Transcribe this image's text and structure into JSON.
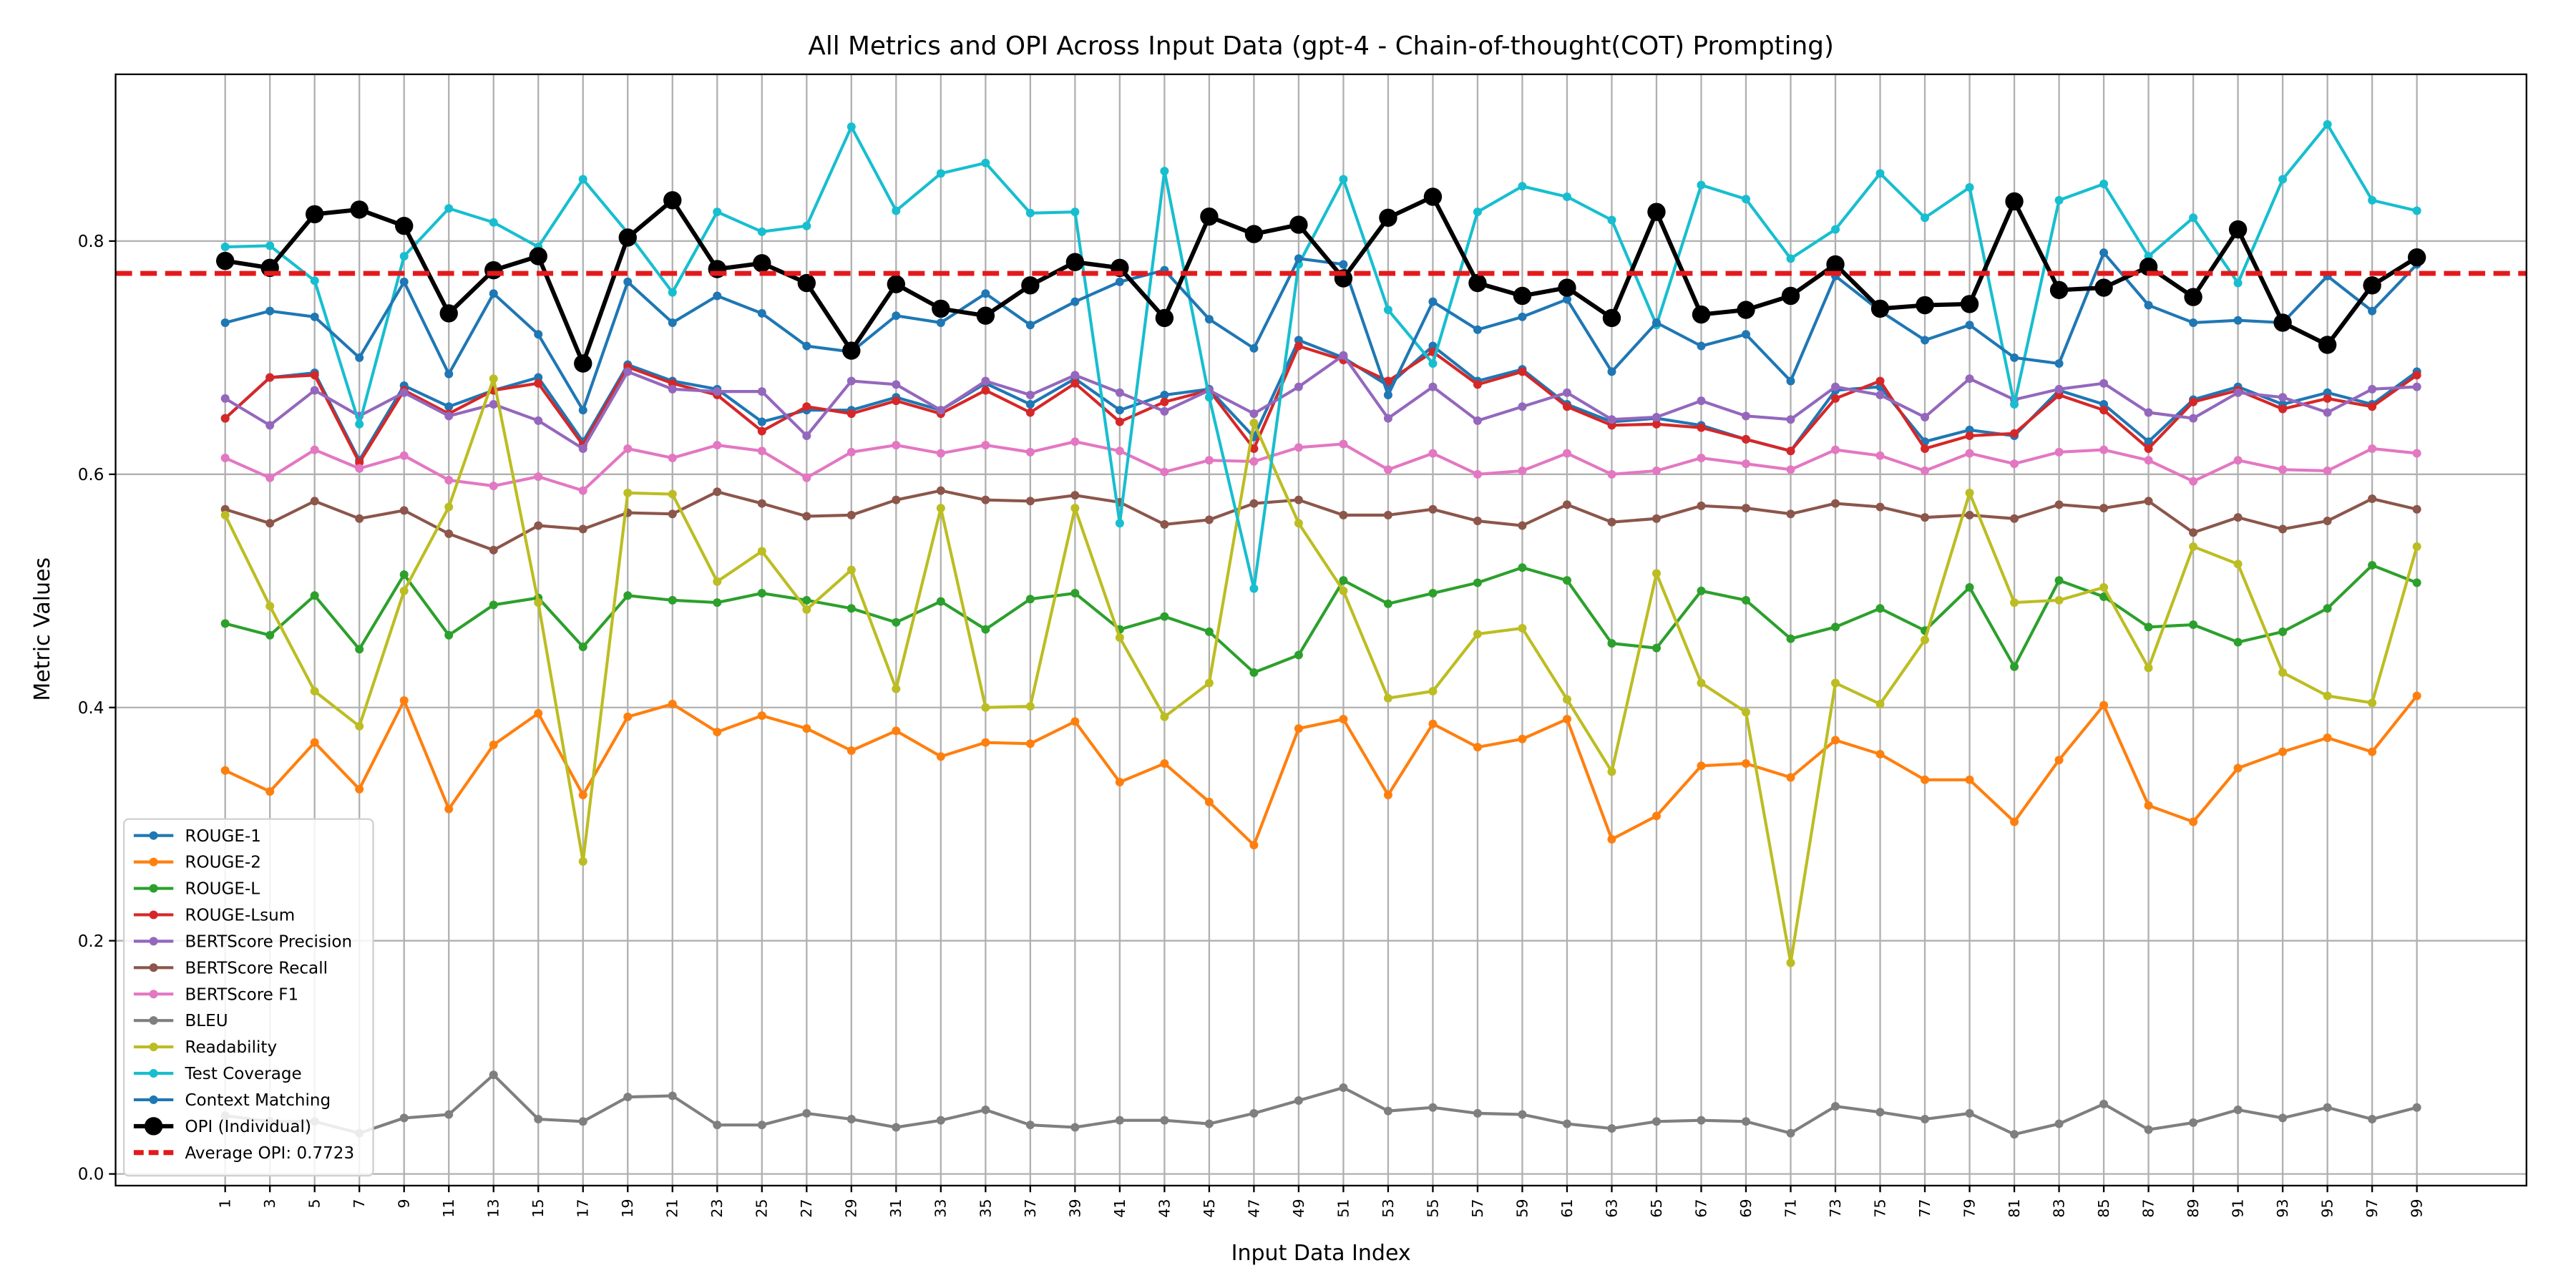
{
  "chart_data": {
    "type": "line",
    "title": "All Metrics and OPI Across Input Data (gpt-4 - Chain-of-thought(COT) Prompting)",
    "x_label": "Input Data Index",
    "y_label": "Metric Values",
    "x": [
      1,
      3,
      5,
      7,
      9,
      11,
      13,
      15,
      17,
      19,
      21,
      23,
      25,
      27,
      29,
      31,
      33,
      35,
      37,
      39,
      41,
      43,
      45,
      47,
      49,
      51,
      53,
      55,
      57,
      59,
      61,
      63,
      65,
      67,
      69,
      71,
      73,
      75,
      77,
      79,
      81,
      83,
      85,
      87,
      89,
      91,
      93,
      95,
      97,
      99
    ],
    "xlim": [
      -3.9,
      103.9
    ],
    "xticks": [
      1,
      3,
      5,
      7,
      9,
      11,
      13,
      15,
      17,
      19,
      21,
      23,
      25,
      27,
      29,
      31,
      33,
      35,
      37,
      39,
      41,
      43,
      45,
      47,
      49,
      51,
      53,
      55,
      57,
      59,
      61,
      63,
      65,
      67,
      69,
      71,
      73,
      75,
      77,
      79,
      81,
      83,
      85,
      87,
      89,
      91,
      93,
      95,
      97,
      99
    ],
    "ylim": [
      -0.01,
      0.943
    ],
    "yticks": [
      {
        "value": 0,
        "label": "0.0"
      },
      0.2,
      0.4,
      0.6,
      0.8
    ],
    "grid": true,
    "legend": "lower left",
    "series": [
      {
        "name": "ROUGE-1",
        "color": "#1f77b4",
        "values": [
          0.648,
          0.683,
          0.687,
          0.612,
          0.676,
          0.658,
          0.672,
          0.683,
          0.628,
          0.694,
          0.68,
          0.673,
          0.645,
          0.655,
          0.655,
          0.666,
          0.655,
          0.678,
          0.66,
          0.682,
          0.655,
          0.668,
          0.673,
          0.632,
          0.715,
          0.7,
          0.676,
          0.71,
          0.68,
          0.69,
          0.66,
          0.645,
          0.648,
          0.642,
          0.63,
          0.62,
          0.672,
          0.675,
          0.628,
          0.638,
          0.633,
          0.672,
          0.66,
          0.628,
          0.664,
          0.675,
          0.66,
          0.67,
          0.66,
          0.688
        ]
      },
      {
        "name": "ROUGE-2",
        "color": "#ff7f0e",
        "values": [
          0.346,
          0.328,
          0.37,
          0.33,
          0.406,
          0.313,
          0.368,
          0.395,
          0.325,
          0.392,
          0.403,
          0.379,
          0.393,
          0.382,
          0.363,
          0.38,
          0.358,
          0.37,
          0.369,
          0.388,
          0.336,
          0.352,
          0.319,
          0.282,
          0.382,
          0.39,
          0.325,
          0.386,
          0.366,
          0.373,
          0.39,
          0.287,
          0.307,
          0.35,
          0.352,
          0.34,
          0.372,
          0.36,
          0.338,
          0.338,
          0.302,
          0.355,
          0.402,
          0.316,
          0.302,
          0.348,
          0.362,
          0.374,
          0.362,
          0.41
        ]
      },
      {
        "name": "ROUGE-L",
        "color": "#2ca02c",
        "values": [
          0.472,
          0.462,
          0.496,
          0.45,
          0.514,
          0.462,
          0.488,
          0.494,
          0.452,
          0.496,
          0.492,
          0.49,
          0.498,
          0.492,
          0.485,
          0.473,
          0.491,
          0.467,
          0.493,
          0.498,
          0.467,
          0.478,
          0.465,
          0.43,
          0.445,
          0.509,
          0.489,
          0.498,
          0.507,
          0.52,
          0.509,
          0.455,
          0.451,
          0.5,
          0.492,
          0.459,
          0.469,
          0.485,
          0.466,
          0.503,
          0.435,
          0.509,
          0.495,
          0.469,
          0.471,
          0.456,
          0.465,
          0.485,
          0.522,
          0.507
        ]
      },
      {
        "name": "ROUGE-Lsum",
        "color": "#d62728",
        "values": [
          0.648,
          0.683,
          0.685,
          0.61,
          0.672,
          0.652,
          0.672,
          0.678,
          0.625,
          0.692,
          0.678,
          0.668,
          0.637,
          0.658,
          0.652,
          0.663,
          0.652,
          0.672,
          0.653,
          0.678,
          0.645,
          0.662,
          0.672,
          0.622,
          0.71,
          0.698,
          0.68,
          0.705,
          0.677,
          0.688,
          0.658,
          0.642,
          0.643,
          0.64,
          0.63,
          0.62,
          0.665,
          0.68,
          0.622,
          0.633,
          0.635,
          0.668,
          0.655,
          0.622,
          0.662,
          0.672,
          0.656,
          0.665,
          0.658,
          0.685
        ]
      },
      {
        "name": "BERTScore Precision",
        "color": "#9467bd",
        "values": [
          0.665,
          0.642,
          0.672,
          0.65,
          0.67,
          0.65,
          0.66,
          0.646,
          0.622,
          0.688,
          0.673,
          0.671,
          0.671,
          0.633,
          0.68,
          0.677,
          0.655,
          0.68,
          0.668,
          0.685,
          0.67,
          0.654,
          0.672,
          0.652,
          0.675,
          0.702,
          0.648,
          0.675,
          0.646,
          0.658,
          0.67,
          0.647,
          0.649,
          0.663,
          0.65,
          0.647,
          0.675,
          0.668,
          0.649,
          0.682,
          0.664,
          0.673,
          0.678,
          0.653,
          0.648,
          0.67,
          0.666,
          0.653,
          0.673,
          0.675
        ]
      },
      {
        "name": "BERTScore Recall",
        "color": "#8c564b",
        "values": [
          0.57,
          0.558,
          0.577,
          0.562,
          0.569,
          0.549,
          0.535,
          0.556,
          0.553,
          0.567,
          0.566,
          0.585,
          0.575,
          0.564,
          0.565,
          0.578,
          0.586,
          0.578,
          0.577,
          0.582,
          0.576,
          0.557,
          0.561,
          0.575,
          0.578,
          0.565,
          0.565,
          0.57,
          0.56,
          0.556,
          0.574,
          0.559,
          0.562,
          0.573,
          0.571,
          0.566,
          0.575,
          0.572,
          0.563,
          0.565,
          0.562,
          0.574,
          0.571,
          0.577,
          0.55,
          0.563,
          0.553,
          0.56,
          0.579,
          0.57
        ]
      },
      {
        "name": "BERTScore F1",
        "color": "#e377c2",
        "values": [
          0.614,
          0.597,
          0.621,
          0.605,
          0.616,
          0.595,
          0.59,
          0.598,
          0.586,
          0.622,
          0.614,
          0.625,
          0.62,
          0.597,
          0.619,
          0.625,
          0.618,
          0.625,
          0.619,
          0.628,
          0.62,
          0.602,
          0.612,
          0.611,
          0.623,
          0.626,
          0.604,
          0.618,
          0.6,
          0.603,
          0.618,
          0.6,
          0.603,
          0.614,
          0.609,
          0.604,
          0.621,
          0.616,
          0.603,
          0.618,
          0.609,
          0.619,
          0.621,
          0.612,
          0.594,
          0.612,
          0.604,
          0.603,
          0.622,
          0.618
        ]
      },
      {
        "name": "BLEU",
        "color": "#7f7f7f",
        "values": [
          0.05,
          0.045,
          0.045,
          0.035,
          0.048,
          0.051,
          0.085,
          0.047,
          0.045,
          0.066,
          0.067,
          0.042,
          0.042,
          0.052,
          0.047,
          0.04,
          0.046,
          0.055,
          0.042,
          0.04,
          0.046,
          0.046,
          0.043,
          0.052,
          0.063,
          0.074,
          0.054,
          0.057,
          0.052,
          0.051,
          0.043,
          0.039,
          0.045,
          0.046,
          0.045,
          0.035,
          0.058,
          0.053,
          0.047,
          0.052,
          0.034,
          0.043,
          0.06,
          0.038,
          0.044,
          0.055,
          0.048,
          0.057,
          0.047,
          0.057
        ]
      },
      {
        "name": "Readability",
        "color": "#bcbd22",
        "values": [
          0.565,
          0.487,
          0.414,
          0.384,
          0.5,
          0.572,
          0.682,
          0.49,
          0.268,
          0.584,
          0.583,
          0.508,
          0.534,
          0.484,
          0.518,
          0.416,
          0.571,
          0.4,
          0.401,
          0.571,
          0.46,
          0.392,
          0.421,
          0.644,
          0.558,
          0.5,
          0.408,
          0.414,
          0.463,
          0.468,
          0.407,
          0.345,
          0.515,
          0.421,
          0.396,
          0.181,
          0.421,
          0.403,
          0.458,
          0.584,
          0.49,
          0.492,
          0.503,
          0.434,
          0.538,
          0.523,
          0.43,
          0.41,
          0.404,
          0.538
        ]
      },
      {
        "name": "Test Coverage",
        "color": "#17becf",
        "values": [
          0.795,
          0.796,
          0.766,
          0.643,
          0.787,
          0.828,
          0.816,
          0.795,
          0.853,
          0.807,
          0.756,
          0.825,
          0.808,
          0.813,
          0.898,
          0.826,
          0.858,
          0.867,
          0.824,
          0.825,
          0.558,
          0.86,
          0.666,
          0.502,
          0.78,
          0.853,
          0.741,
          0.695,
          0.825,
          0.847,
          0.838,
          0.818,
          0.728,
          0.848,
          0.836,
          0.785,
          0.81,
          0.858,
          0.82,
          0.846,
          0.66,
          0.835,
          0.849,
          0.787,
          0.82,
          0.764,
          0.853,
          0.9,
          0.835,
          0.826
        ]
      },
      {
        "name": "Context Matching",
        "color": "#1f77b4",
        "values": [
          0.73,
          0.74,
          0.735,
          0.7,
          0.765,
          0.686,
          0.755,
          0.72,
          0.655,
          0.765,
          0.73,
          0.753,
          0.738,
          0.71,
          0.705,
          0.736,
          0.73,
          0.755,
          0.728,
          0.748,
          0.765,
          0.775,
          0.733,
          0.708,
          0.785,
          0.78,
          0.668,
          0.748,
          0.724,
          0.735,
          0.75,
          0.688,
          0.73,
          0.71,
          0.72,
          0.68,
          0.77,
          0.74,
          0.715,
          0.728,
          0.7,
          0.695,
          0.79,
          0.745,
          0.73,
          0.732,
          0.73,
          0.77,
          0.74,
          0.78
        ]
      },
      {
        "name": "OPI (Individual)",
        "color": "#000000",
        "highlight": true,
        "values": [
          0.783,
          0.777,
          0.823,
          0.827,
          0.813,
          0.738,
          0.775,
          0.787,
          0.695,
          0.803,
          0.835,
          0.776,
          0.781,
          0.764,
          0.706,
          0.763,
          0.742,
          0.736,
          0.762,
          0.782,
          0.777,
          0.734,
          0.821,
          0.806,
          0.814,
          0.768,
          0.82,
          0.838,
          0.764,
          0.753,
          0.76,
          0.734,
          0.825,
          0.737,
          0.741,
          0.753,
          0.78,
          0.742,
          0.745,
          0.746,
          0.834,
          0.758,
          0.76,
          0.778,
          0.752,
          0.81,
          0.73,
          0.711,
          0.762,
          0.786
        ]
      }
    ],
    "average_line": {
      "name": "Average OPI: 0.7723",
      "value": 0.7723,
      "color": "#e31a1c"
    }
  }
}
